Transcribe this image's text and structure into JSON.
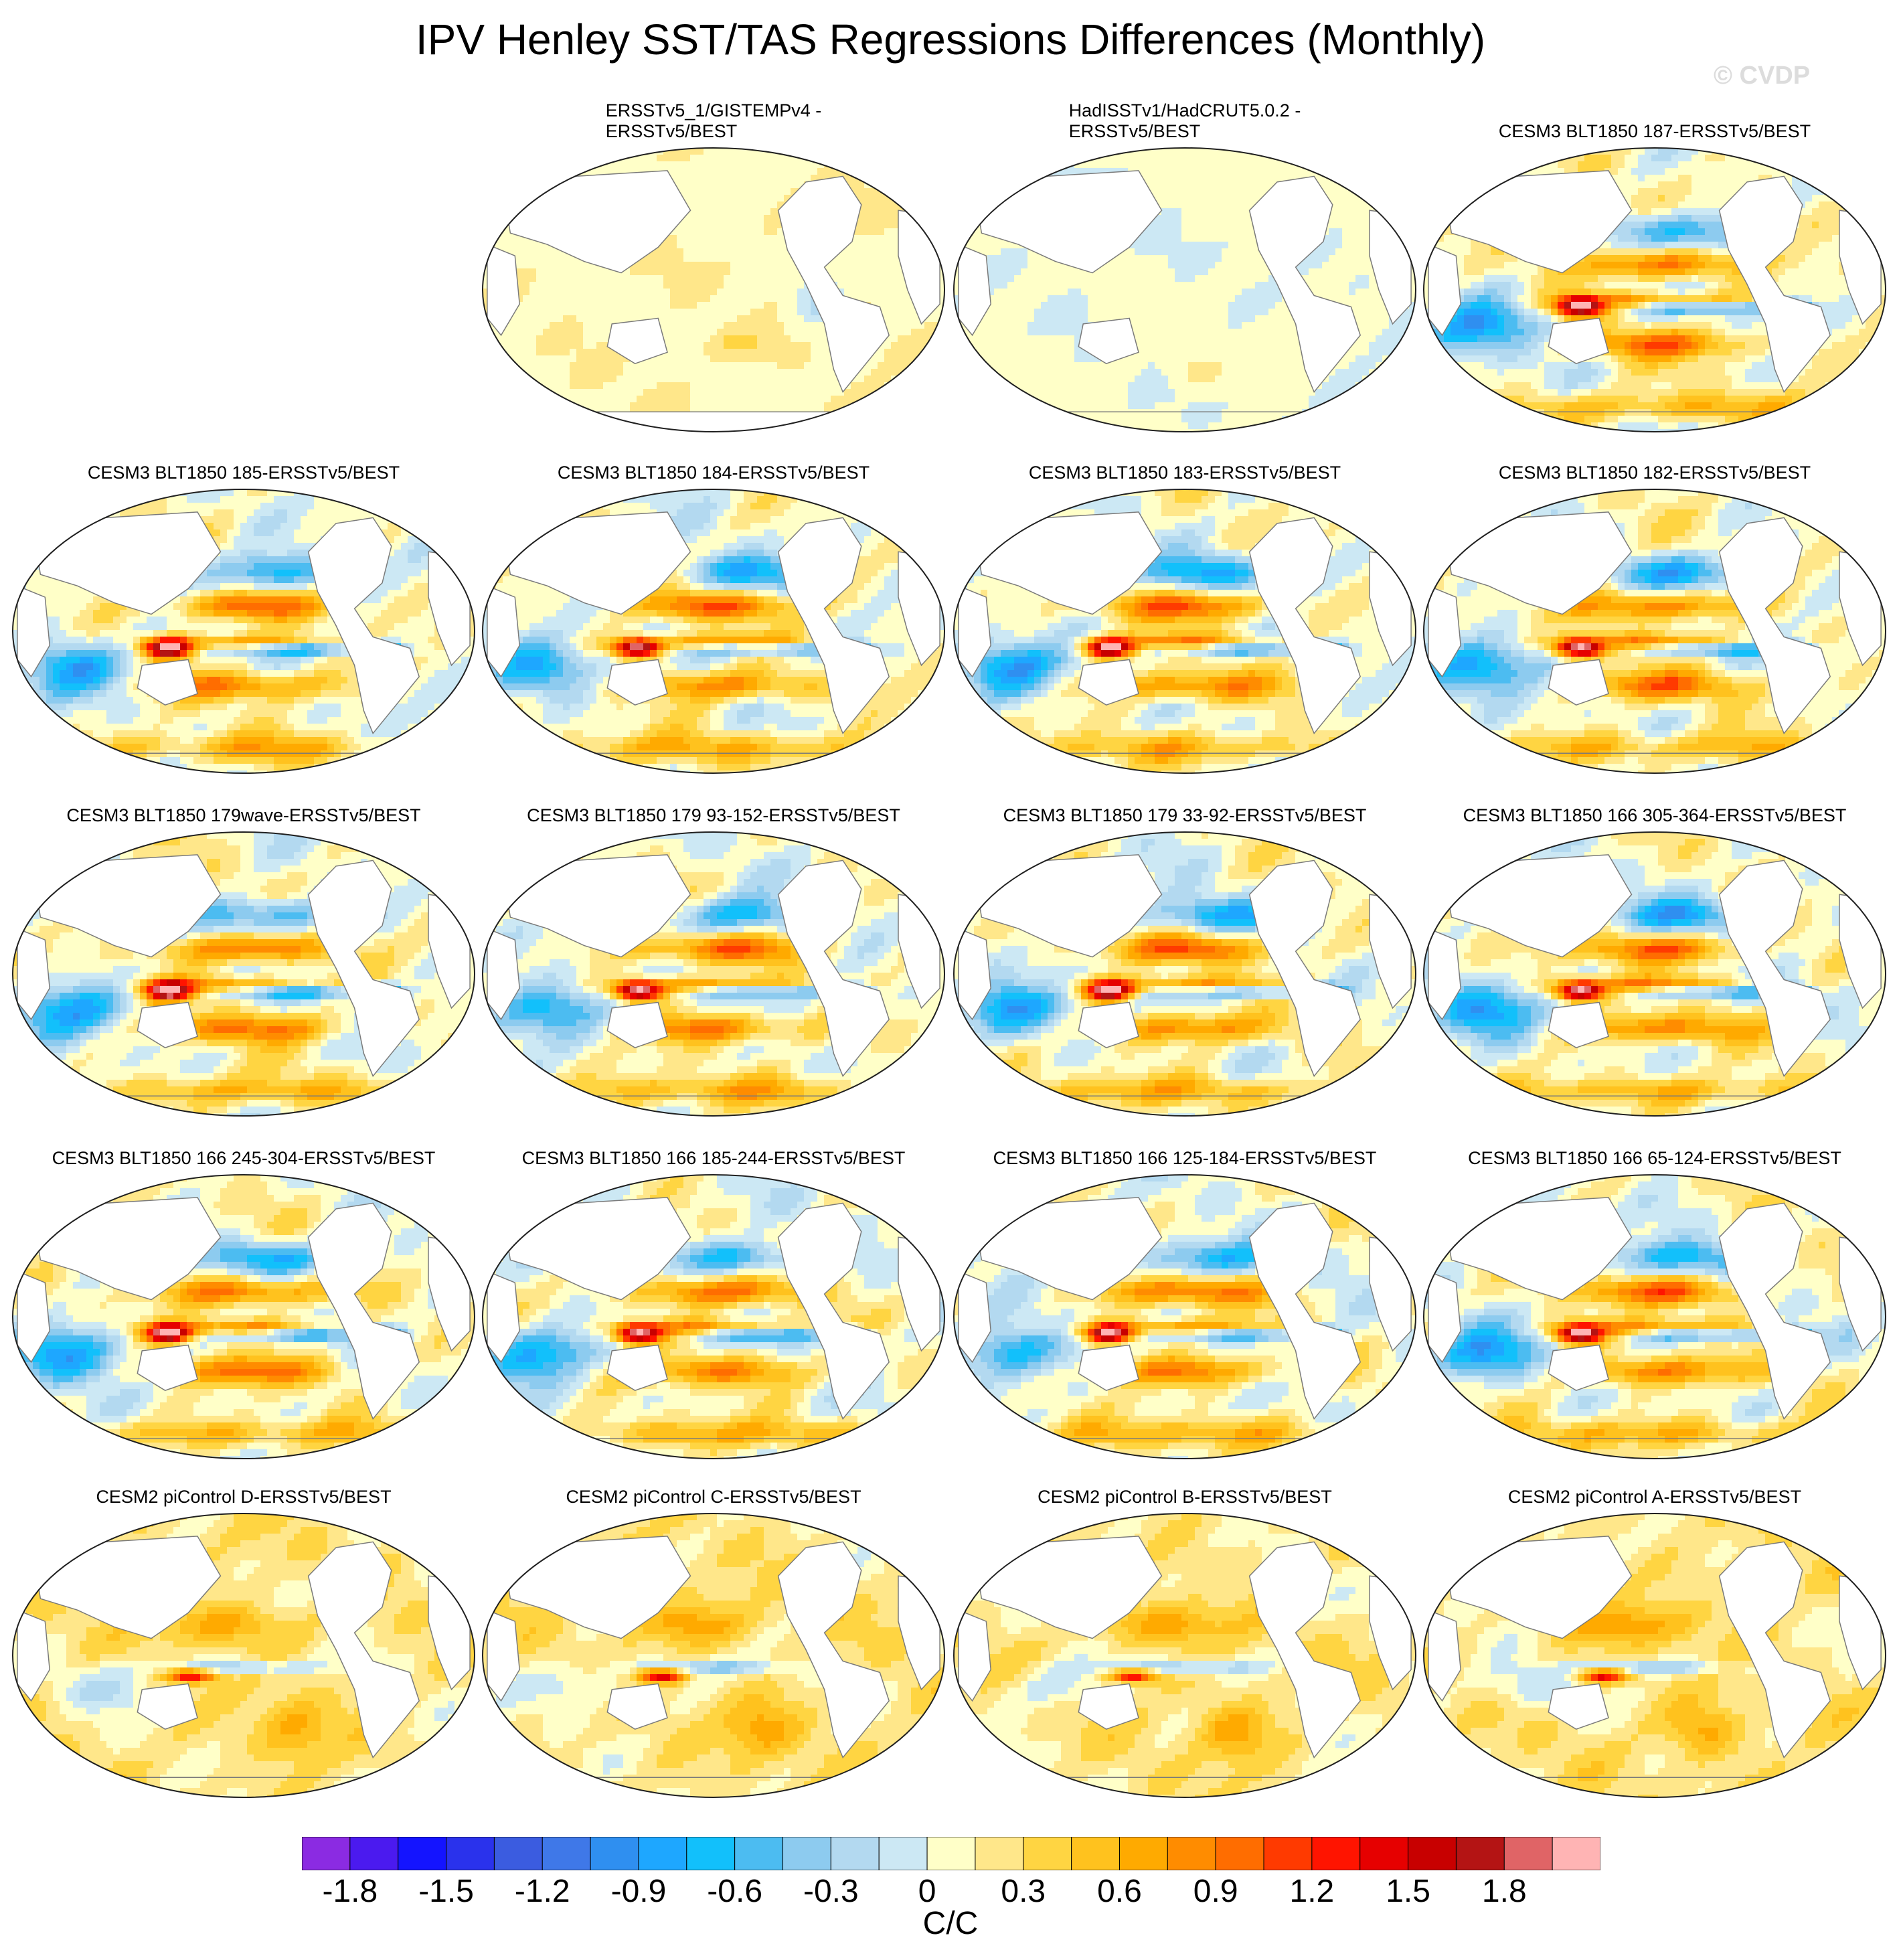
{
  "figure": {
    "title": "IPV Henley SST/TAS Regressions Differences (Monthly)",
    "watermark": "© CVDP"
  },
  "panels": [
    {
      "id": "p01",
      "row": 0,
      "col": 1,
      "title": "ERSSTv5_1/GISTEMPv4 -\nERSSTv5/BEST",
      "pattern": "obs1"
    },
    {
      "id": "p02",
      "row": 0,
      "col": 2,
      "title": "HadISSTv1/HadCRUT5.0.2 -\nERSSTv5/BEST",
      "pattern": "obs2"
    },
    {
      "id": "p03",
      "row": 0,
      "col": 3,
      "title": "CESM3 BLT1850 187-ERSSTv5/BEST",
      "pattern": "cesm3"
    },
    {
      "id": "p04",
      "row": 1,
      "col": 0,
      "title": "CESM3 BLT1850 185-ERSSTv5/BEST",
      "pattern": "cesm3"
    },
    {
      "id": "p05",
      "row": 1,
      "col": 1,
      "title": "CESM3 BLT1850 184-ERSSTv5/BEST",
      "pattern": "cesm3"
    },
    {
      "id": "p06",
      "row": 1,
      "col": 2,
      "title": "CESM3 BLT1850 183-ERSSTv5/BEST",
      "pattern": "cesm3"
    },
    {
      "id": "p07",
      "row": 1,
      "col": 3,
      "title": "CESM3 BLT1850 182-ERSSTv5/BEST",
      "pattern": "cesm3"
    },
    {
      "id": "p08",
      "row": 2,
      "col": 0,
      "title": "CESM3 BLT1850 179wave-ERSSTv5/BEST",
      "pattern": "cesm3"
    },
    {
      "id": "p09",
      "row": 2,
      "col": 1,
      "title": "CESM3 BLT1850 179 93-152-ERSSTv5/BEST",
      "pattern": "cesm3"
    },
    {
      "id": "p10",
      "row": 2,
      "col": 2,
      "title": "CESM3 BLT1850 179 33-92-ERSSTv5/BEST",
      "pattern": "cesm3"
    },
    {
      "id": "p11",
      "row": 2,
      "col": 3,
      "title": "CESM3 BLT1850 166 305-364-ERSSTv5/BEST",
      "pattern": "cesm3"
    },
    {
      "id": "p12",
      "row": 3,
      "col": 0,
      "title": "CESM3 BLT1850 166 245-304-ERSSTv5/BEST",
      "pattern": "cesm3"
    },
    {
      "id": "p13",
      "row": 3,
      "col": 1,
      "title": "CESM3 BLT1850 166 185-244-ERSSTv5/BEST",
      "pattern": "cesm3"
    },
    {
      "id": "p14",
      "row": 3,
      "col": 2,
      "title": "CESM3 BLT1850 166 125-184-ERSSTv5/BEST",
      "pattern": "cesm3"
    },
    {
      "id": "p15",
      "row": 3,
      "col": 3,
      "title": "CESM3 BLT1850 166 65-124-ERSSTv5/BEST",
      "pattern": "cesm3"
    },
    {
      "id": "p16",
      "row": 4,
      "col": 0,
      "title": "CESM2 piControl D-ERSSTv5/BEST",
      "pattern": "cesm2"
    },
    {
      "id": "p17",
      "row": 4,
      "col": 1,
      "title": "CESM2 piControl C-ERSSTv5/BEST",
      "pattern": "cesm2"
    },
    {
      "id": "p18",
      "row": 4,
      "col": 2,
      "title": "CESM2 piControl B-ERSSTv5/BEST",
      "pattern": "cesm2"
    },
    {
      "id": "p19",
      "row": 4,
      "col": 3,
      "title": "CESM2 piControl A-ERSSTv5/BEST",
      "pattern": "cesm2"
    }
  ],
  "colorbar": {
    "units": "C/C",
    "tick_labels": [
      "-1.8",
      "-1.5",
      "-1.2",
      "-0.9",
      "-0.6",
      "-0.3",
      "0",
      "0.3",
      "0.6",
      "0.9",
      "1.2",
      "1.5",
      "1.8"
    ],
    "colors": [
      "#8b2be2",
      "#4b1aef",
      "#1414ff",
      "#2a32ec",
      "#3b5ce0",
      "#3f78e8",
      "#2f8ff0",
      "#1ea7ff",
      "#12c0fb",
      "#4cbcf1",
      "#8dcbef",
      "#b3d9f0",
      "#cce8f4",
      "#ffffc8",
      "#ffe78a",
      "#ffd542",
      "#ffc21e",
      "#ffaa00",
      "#ff8c00",
      "#ff6d00",
      "#ff3a00",
      "#ff1400",
      "#e60000",
      "#c80000",
      "#b41414",
      "#e06466",
      "#ffb4b4"
    ]
  },
  "styles": {
    "land": "#ffffff",
    "coast": "#7a7a7a",
    "border": "#202020"
  }
}
